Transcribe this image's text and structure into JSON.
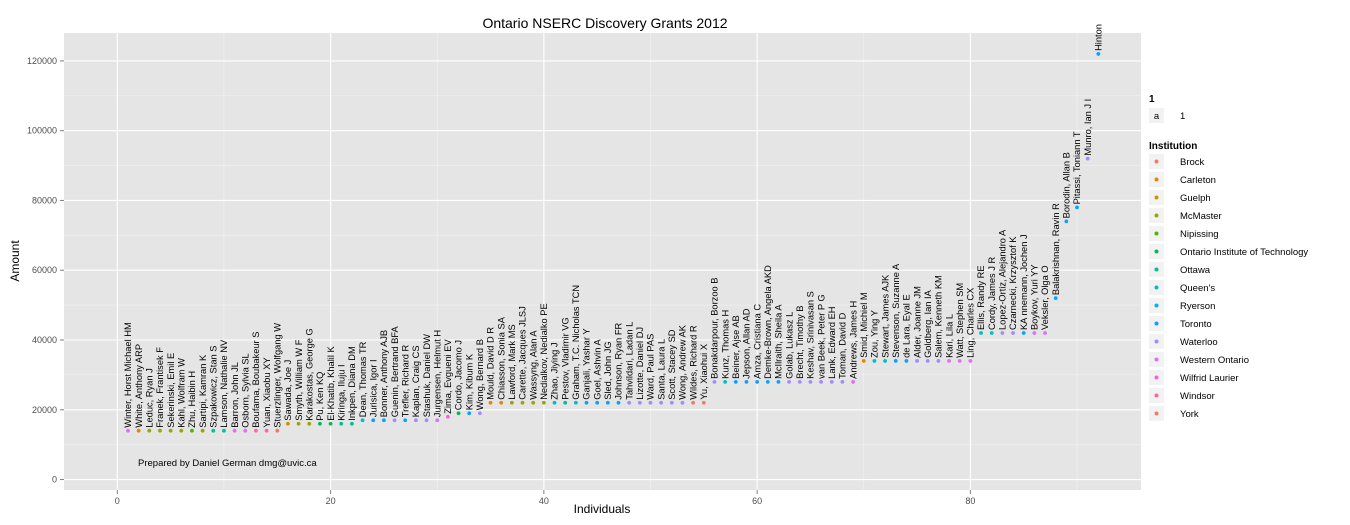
{
  "chart_data": {
    "type": "scatter",
    "title": "Ontario NSERC Discovery Grants 2012",
    "xlabel": "Individuals",
    "ylabel": "Amount",
    "xlim": [
      -5,
      96
    ],
    "ylim": [
      -3000,
      128000
    ],
    "xticks": [
      0,
      20,
      40,
      60,
      80
    ],
    "yticks": [
      0,
      20000,
      40000,
      60000,
      80000,
      100000,
      120000
    ],
    "grid": true,
    "annotation": "Prepared by Daniel German dmg@uvic.ca",
    "legend": {
      "placement": "right",
      "group1_title": "1",
      "group1_key": "a",
      "group1_label": "1",
      "institution_title": "Institution",
      "items": [
        {
          "name": "Brock",
          "color": "#F8766D"
        },
        {
          "name": "Carleton",
          "color": "#E38900"
        },
        {
          "name": "Guelph",
          "color": "#C49A00"
        },
        {
          "name": "McMaster",
          "color": "#99A800"
        },
        {
          "name": "Nipissing",
          "color": "#53B400"
        },
        {
          "name": "Ontario Institute of Technology",
          "color": "#00BC56"
        },
        {
          "name": "Ottawa",
          "color": "#00C094"
        },
        {
          "name": "Queen's",
          "color": "#00BFC4"
        },
        {
          "name": "Ryerson",
          "color": "#00B6EB"
        },
        {
          "name": "Toronto",
          "color": "#06A4FF"
        },
        {
          "name": "Waterloo",
          "color": "#A58AFF"
        },
        {
          "name": "Western Ontario",
          "color": "#DF70F8"
        },
        {
          "name": "Wilfrid Laurier",
          "color": "#FB61D7"
        },
        {
          "name": "Windsor",
          "color": "#FF66A8"
        },
        {
          "name": "York",
          "color": "#F8766D"
        }
      ]
    },
    "points": [
      {
        "label": "Winter, Horst Michael HM",
        "x": 1,
        "y": 14000,
        "color": "#DF70F8"
      },
      {
        "label": "White, Anthony ARP",
        "x": 2,
        "y": 14000,
        "color": "#E38900"
      },
      {
        "label": "Leduc, Ryan J",
        "x": 3,
        "y": 14000,
        "color": "#99A800"
      },
      {
        "label": "Franek, Frantisek F",
        "x": 4,
        "y": 14000,
        "color": "#99A800"
      },
      {
        "label": "Sekerinski, Emil E",
        "x": 5,
        "y": 14000,
        "color": "#99A800"
      },
      {
        "label": "Kahl, Wolfram W",
        "x": 6,
        "y": 14000,
        "color": "#99A800"
      },
      {
        "label": "Zhu, Haibin H",
        "x": 7,
        "y": 14000,
        "color": "#53B400"
      },
      {
        "label": "Sartipi, Kamran K",
        "x": 8,
        "y": 14000,
        "color": "#99A800"
      },
      {
        "label": "Szpakowicz, Stan S",
        "x": 9,
        "y": 14000,
        "color": "#00C094"
      },
      {
        "label": "Lamson, Nathalie NV",
        "x": 10,
        "y": 14000,
        "color": "#00C094"
      },
      {
        "label": "Barron, John JL",
        "x": 11,
        "y": 14000,
        "color": "#DF70F8"
      },
      {
        "label": "Osborn, Sylvia SL",
        "x": 12,
        "y": 14000,
        "color": "#DF70F8"
      },
      {
        "label": "Boufama, Boubakeur S",
        "x": 13,
        "y": 14000,
        "color": "#FF66A8"
      },
      {
        "label": "Yuan, Xiaobu XY",
        "x": 14,
        "y": 14000,
        "color": "#FF66A8"
      },
      {
        "label": "Stuerzlinger, Wolfgang W",
        "x": 15,
        "y": 14000,
        "color": "#F8766D"
      },
      {
        "label": "Sawada, Joe J",
        "x": 16,
        "y": 16000,
        "color": "#C49A00"
      },
      {
        "label": "Smyth, William W F",
        "x": 17,
        "y": 16000,
        "color": "#99A800"
      },
      {
        "label": "Karakostas, George G",
        "x": 18,
        "y": 16000,
        "color": "#99A800"
      },
      {
        "label": "Pu, Ken KQ",
        "x": 19,
        "y": 16000,
        "color": "#00BC56"
      },
      {
        "label": "El-Khatib, Khalil K",
        "x": 20,
        "y": 16000,
        "color": "#00BC56"
      },
      {
        "label": "Kiringa, Iluju I",
        "x": 21,
        "y": 16000,
        "color": "#00C094"
      },
      {
        "label": "Inkpen, Diana DM",
        "x": 22,
        "y": 16000,
        "color": "#00C094"
      },
      {
        "label": "Dean, Thomas TR",
        "x": 23,
        "y": 17000,
        "color": "#00BFC4"
      },
      {
        "label": "Jurisica, Igor I",
        "x": 24,
        "y": 17000,
        "color": "#06A4FF"
      },
      {
        "label": "Bonner, Anthony AJB",
        "x": 25,
        "y": 17000,
        "color": "#06A4FF"
      },
      {
        "label": "Guenin, Bertrand BFA",
        "x": 26,
        "y": 17000,
        "color": "#A58AFF"
      },
      {
        "label": "Trefler, Richard R",
        "x": 27,
        "y": 17000,
        "color": "#06A4FF"
      },
      {
        "label": "Kaplan, Craig CS",
        "x": 28,
        "y": 17000,
        "color": "#A58AFF"
      },
      {
        "label": "Stashuk, Daniel DW",
        "x": 29,
        "y": 17000,
        "color": "#A58AFF"
      },
      {
        "label": "Jurgensen, Helmut H",
        "x": 30,
        "y": 17000,
        "color": "#DF70F8"
      },
      {
        "label": "Zima, Evgueni EV",
        "x": 31,
        "y": 18000,
        "color": "#FB61D7"
      },
      {
        "label": "Cordo, Jacomo J",
        "x": 32,
        "y": 19000,
        "color": "#00BC56"
      },
      {
        "label": "Kim, Kibum K",
        "x": 33,
        "y": 19000,
        "color": "#06A4FF"
      },
      {
        "label": "Wong, Bernard B",
        "x": 34,
        "y": 19000,
        "color": "#A58AFF"
      },
      {
        "label": "Mould, David D R",
        "x": 35,
        "y": 22000,
        "color": "#E38900"
      },
      {
        "label": "Chiasson, Sonia SA",
        "x": 36,
        "y": 22000,
        "color": "#E38900"
      },
      {
        "label": "Lawford, Mark MS",
        "x": 37,
        "y": 22000,
        "color": "#99A800"
      },
      {
        "label": "Carette, Jacques JLSJ",
        "x": 38,
        "y": 22000,
        "color": "#99A800"
      },
      {
        "label": "Wassyng, Alan A",
        "x": 39,
        "y": 22000,
        "color": "#99A800"
      },
      {
        "label": "Nedialkov, Nedialko PE",
        "x": 40,
        "y": 22000,
        "color": "#99A800"
      },
      {
        "label": "Zhao, Jiying J",
        "x": 41,
        "y": 22000,
        "color": "#00BFC4"
      },
      {
        "label": "Pestov, Vladimir VG",
        "x": 42,
        "y": 22000,
        "color": "#00C094"
      },
      {
        "label": "Graham, T.C. Nicholas TCN",
        "x": 43,
        "y": 22000,
        "color": "#00BFC4"
      },
      {
        "label": "Ganjali, Yashar Y",
        "x": 44,
        "y": 22000,
        "color": "#06A4FF"
      },
      {
        "label": "Goel, Ashvin A",
        "x": 45,
        "y": 22000,
        "color": "#06A4FF"
      },
      {
        "label": "Sled, John JG",
        "x": 46,
        "y": 22000,
        "color": "#06A4FF"
      },
      {
        "label": "Johnson, Ryan FR",
        "x": 47,
        "y": 22000,
        "color": "#06A4FF"
      },
      {
        "label": "Tahvildari, Ladan L",
        "x": 48,
        "y": 22000,
        "color": "#A58AFF"
      },
      {
        "label": "Lizotte, Daniel DJ",
        "x": 49,
        "y": 22000,
        "color": "#A58AFF"
      },
      {
        "label": "Ward, Paul PAS",
        "x": 50,
        "y": 22000,
        "color": "#A58AFF"
      },
      {
        "label": "Santa, Laura L",
        "x": 51,
        "y": 22000,
        "color": "#A58AFF"
      },
      {
        "label": "Scott, Stacey SD",
        "x": 52,
        "y": 22000,
        "color": "#A58AFF"
      },
      {
        "label": "Wong, Andrew AK",
        "x": 53,
        "y": 22000,
        "color": "#A58AFF"
      },
      {
        "label": "Wildes, Richard R",
        "x": 54,
        "y": 22000,
        "color": "#F8766D"
      },
      {
        "label": "Yu, Xiaohui X",
        "x": 55,
        "y": 22000,
        "color": "#F8766D"
      },
      {
        "label": "Bonakdarpour, Borzoo B",
        "x": 56,
        "y": 28000,
        "color": "#A58AFF"
      },
      {
        "label": "Kunz, Thomas H",
        "x": 57,
        "y": 28000,
        "color": "#00BFC4"
      },
      {
        "label": "Beiner, Ajse AB",
        "x": 58,
        "y": 28000,
        "color": "#06A4FF"
      },
      {
        "label": "Jepson, Allan AD",
        "x": 59,
        "y": 28000,
        "color": "#06A4FF"
      },
      {
        "label": "Amza, Cristiana C",
        "x": 60,
        "y": 28000,
        "color": "#06A4FF"
      },
      {
        "label": "Demke-Brown, Angela AKD",
        "x": 61,
        "y": 28000,
        "color": "#06A4FF"
      },
      {
        "label": "McIlraith, Sheila A",
        "x": 62,
        "y": 28000,
        "color": "#06A4FF"
      },
      {
        "label": "Golab, Lukasz L",
        "x": 63,
        "y": 28000,
        "color": "#A58AFF"
      },
      {
        "label": "Brecht, Timothy B",
        "x": 64,
        "y": 28000,
        "color": "#A58AFF"
      },
      {
        "label": "Keshav, Srinivasan S",
        "x": 65,
        "y": 28000,
        "color": "#A58AFF"
      },
      {
        "label": "van Beek, Peter P G",
        "x": 66,
        "y": 28000,
        "color": "#A58AFF"
      },
      {
        "label": "Lank, Edward EH",
        "x": 67,
        "y": 28000,
        "color": "#A58AFF"
      },
      {
        "label": "Toman, David D",
        "x": 68,
        "y": 28000,
        "color": "#A58AFF"
      },
      {
        "label": "Andrews, James H",
        "x": 69,
        "y": 28000,
        "color": "#DF70F8"
      },
      {
        "label": "Smid, Michiel M",
        "x": 70,
        "y": 34000,
        "color": "#E38900"
      },
      {
        "label": "Zou, Ying Y",
        "x": 71,
        "y": 34000,
        "color": "#00BFC4"
      },
      {
        "label": "Stewart, James AJK",
        "x": 72,
        "y": 34000,
        "color": "#00BFC4"
      },
      {
        "label": "Stevenson, Suzanne A",
        "x": 73,
        "y": 34000,
        "color": "#06A4FF"
      },
      {
        "label": "de Lara, Eyal E",
        "x": 74,
        "y": 34000,
        "color": "#06A4FF"
      },
      {
        "label": "Alder, Joanne JM",
        "x": 75,
        "y": 34000,
        "color": "#A58AFF"
      },
      {
        "label": "Goldberg, Ian IA",
        "x": 76,
        "y": 34000,
        "color": "#A58AFF"
      },
      {
        "label": "Salem, Kenneth KM",
        "x": 77,
        "y": 34000,
        "color": "#A58AFF"
      },
      {
        "label": "Kari, Lila L",
        "x": 78,
        "y": 34000,
        "color": "#DF70F8"
      },
      {
        "label": "Watt, Stephen SM",
        "x": 79,
        "y": 34000,
        "color": "#DF70F8"
      },
      {
        "label": "Ling, Charles CX",
        "x": 80,
        "y": 34000,
        "color": "#DF70F8"
      },
      {
        "label": "Ellis, Randy RE",
        "x": 81,
        "y": 42000,
        "color": "#00BFC4"
      },
      {
        "label": "Cordy, James J R",
        "x": 82,
        "y": 42000,
        "color": "#00BFC4"
      },
      {
        "label": "Lopez-Ortiz, Alejandro A",
        "x": 83,
        "y": 42000,
        "color": "#A58AFF"
      },
      {
        "label": "Czarnecki, Krzysztof K",
        "x": 84,
        "y": 42000,
        "color": "#A58AFF"
      },
      {
        "label": "KA nnemann, Jochen J",
        "x": 85,
        "y": 42000,
        "color": "#06A4FF"
      },
      {
        "label": "Boykov, Yuri YY",
        "x": 86,
        "y": 42000,
        "color": "#DF70F8"
      },
      {
        "label": "Veksler, Olga O",
        "x": 87,
        "y": 42000,
        "color": "#DF70F8"
      },
      {
        "label": "Balakrishnan, Ravin R",
        "x": 88,
        "y": 52000,
        "color": "#06A4FF"
      },
      {
        "label": "Borodin, Allan B",
        "x": 89,
        "y": 74000,
        "color": "#06A4FF"
      },
      {
        "label": "Pitassi, Toniann T",
        "x": 90,
        "y": 78000,
        "color": "#06A4FF"
      },
      {
        "label": "Munro, Ian J I",
        "x": 91,
        "y": 92000,
        "color": "#A58AFF"
      },
      {
        "label": "Hinton",
        "x": 92,
        "y": 122000,
        "color": "#06A4FF"
      }
    ]
  }
}
